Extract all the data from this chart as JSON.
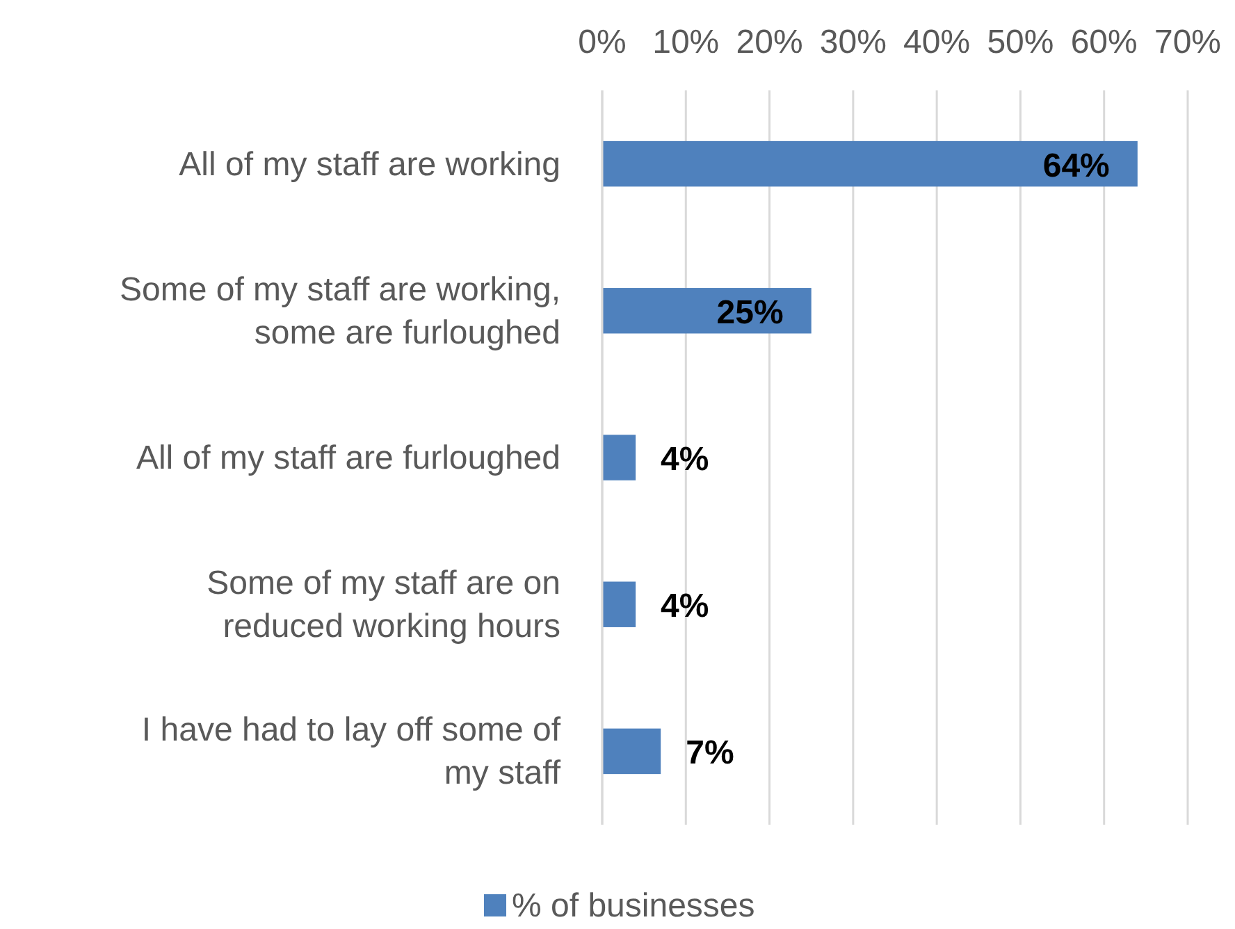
{
  "chart_data": {
    "type": "bar",
    "orientation": "horizontal",
    "categories": [
      "All of my staff are working",
      "Some of my staff are working, some are furloughed",
      "All of my staff are furloughed",
      "Some of my staff are on reduced working hours",
      "I have had to lay off some of my staff"
    ],
    "series": [
      {
        "name": "% of businesses",
        "color": "#4f81bd",
        "values": [
          64,
          25,
          4,
          4,
          7
        ]
      }
    ],
    "xlim": [
      0,
      70
    ],
    "xticks": [
      {
        "value": 0,
        "label": "0%"
      },
      {
        "value": 10,
        "label": "10%"
      },
      {
        "value": 20,
        "label": "20%"
      },
      {
        "value": 30,
        "label": "30%"
      },
      {
        "value": 40,
        "label": "40%"
      },
      {
        "value": 50,
        "label": "50%"
      },
      {
        "value": 60,
        "label": "60%"
      },
      {
        "value": 70,
        "label": "70%"
      }
    ],
    "value_labels": [
      "64%",
      "25%",
      "4%",
      "4%",
      "7%"
    ],
    "grid": "x",
    "legend": "bottom"
  }
}
